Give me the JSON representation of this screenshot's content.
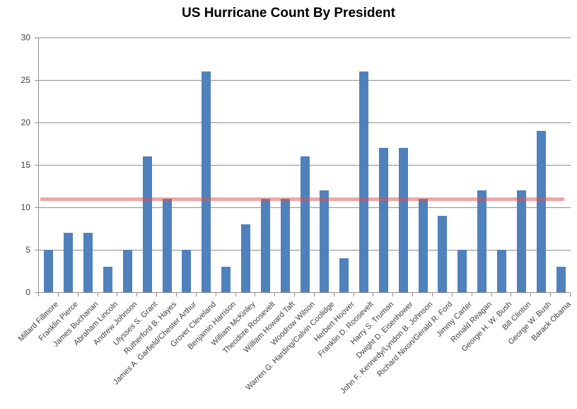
{
  "title": "US Hurricane Count By President",
  "chart_data": {
    "type": "bar",
    "title": "US Hurricane Count By President",
    "categories": [
      "Millard Fillmore",
      "Franklin Pierce",
      "James Buchanan",
      "Abraham Lincoln",
      "Andrew Johnson",
      "Ulysses S. Grant",
      "Rutherford B. Hayes",
      "James A. Garfield/Chester Arthur",
      "Grover Cleveland",
      "Benjamin Harrison",
      "William McKinley",
      "Theodore Roosevelt",
      "William Howard Taft",
      "Woodrow Wilson",
      "Warren G. Harding/Calvin Coolidge",
      "Herbert Hoover",
      "Franklin D. Roosevelt",
      "Harry S. Truman",
      "Dwight D. Eisenhower",
      "John F. Kennedy/Lyndon B. Johnson",
      "Richard Nixon/Gerald R. Ford",
      "Jimmy Carter",
      "Ronald Reagan",
      "George H. W. Bush",
      "Bill Clinton",
      "George W. Bush",
      "Barack Obama"
    ],
    "values": [
      5,
      7,
      7,
      3,
      5,
      16,
      11,
      5,
      26,
      3,
      8,
      11,
      11,
      16,
      12,
      4,
      26,
      17,
      17,
      11,
      9,
      5,
      12,
      5,
      12,
      19,
      3
    ],
    "xlabel": "",
    "ylabel": "",
    "ylim": [
      0,
      30
    ],
    "yticks": [
      0,
      5,
      10,
      15,
      20,
      25,
      30
    ],
    "grid": true,
    "legend_position": "none",
    "bar_color": "#4F81BD",
    "gridline_color": "#8E8E8E",
    "axis_text_color": "#3F3F3F",
    "title_color": "#000000",
    "reference_line": {
      "value": 11,
      "color": "#E05050",
      "opacity": 0.5
    }
  }
}
